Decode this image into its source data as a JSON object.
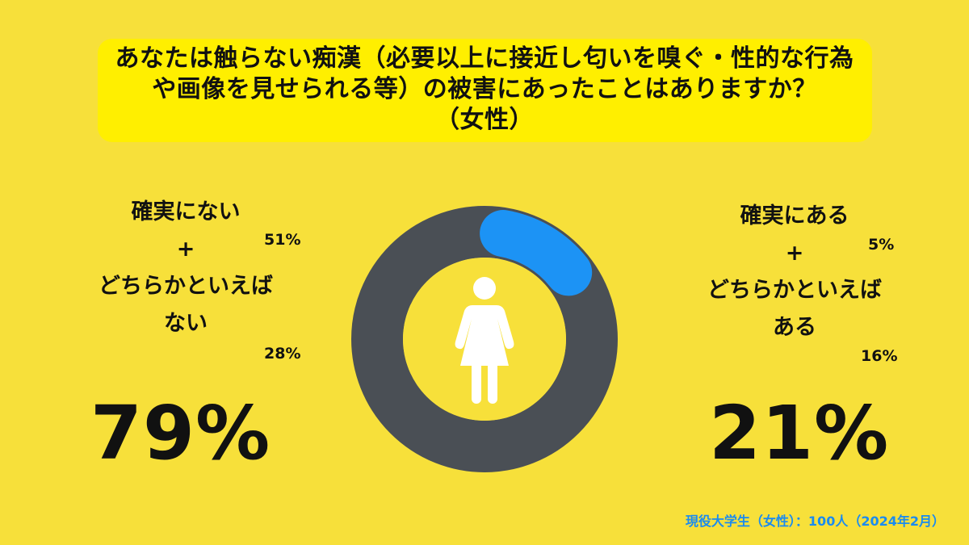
{
  "title": {
    "line1": "あなたは触らない痴漢（必要以上に接近し匂いを嗅ぐ・性的な行為",
    "line2": "や画像を見せられる等）の被害にあったことはありますか？",
    "line3": "（女性）"
  },
  "left": {
    "line1": "確実にない",
    "plus": "+",
    "line2": "どちらかといえば",
    "line3": "ない",
    "pct_a": "51%",
    "pct_b": "28%",
    "total": "79%"
  },
  "right": {
    "line1": "確実にある",
    "plus": "+",
    "line2": "どちらかといえば",
    "line3": "ある",
    "pct_a": "5%",
    "pct_b": "16%",
    "total": "21%"
  },
  "footer": "現役大学生（女性）：100人（2024年2月）",
  "colors": {
    "background": "#F7E03A",
    "title_box": "#FFEF00",
    "donut_no": "#4A4F55",
    "donut_yes": "#1C93F5",
    "footer": "#1A8BF0"
  },
  "icon": "woman-icon",
  "chart_data": {
    "type": "pie",
    "categories": [
      "確実にない + どちらかといえばない",
      "確実にある + どちらかといえばある"
    ],
    "values": [
      79,
      21
    ],
    "sub_values": {
      "確実にない": 51,
      "どちらかといえばない": 28,
      "確実にある": 5,
      "どちらかといえばある": 16
    },
    "donut": true,
    "legend": "none"
  }
}
